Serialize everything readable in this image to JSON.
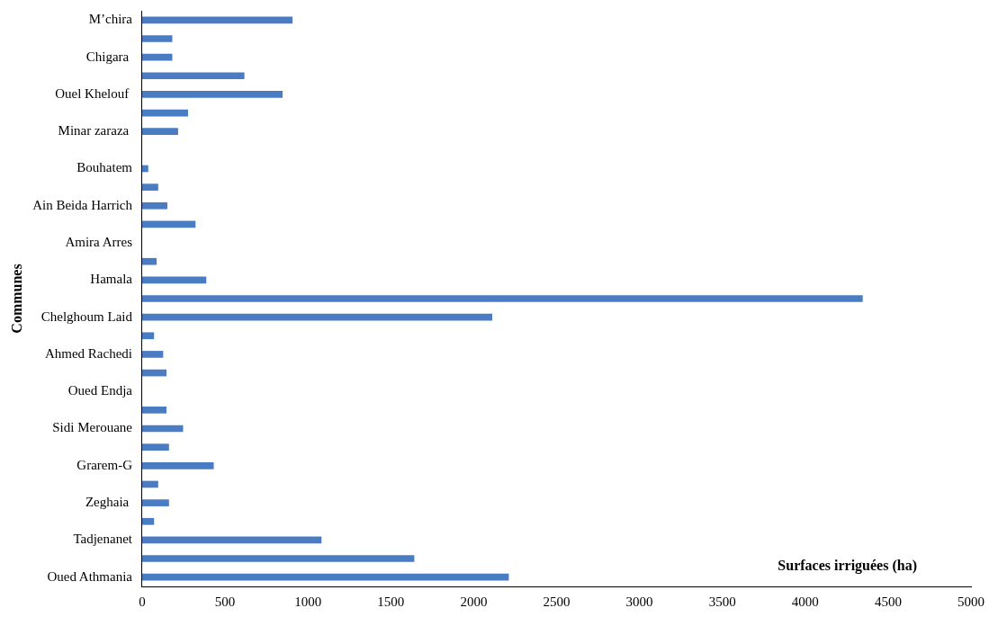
{
  "chart_data": {
    "type": "bar",
    "orientation": "horizontal",
    "xlabel": "Surfaces irriguées (ha)",
    "ylabel": "Communes",
    "categories": [
      "M’chira",
      null,
      "Chigara ",
      null,
      "Ouel Khelouf ",
      null,
      "Minar zaraza ",
      null,
      "Bouhatem",
      null,
      "Ain Beida Harrich",
      null,
      "Amira Arres",
      null,
      "Hamala",
      null,
      "Chelghoum Laid",
      null,
      "Ahmed Rachedi",
      null,
      "Oued Endja",
      null,
      "Sidi Merouane",
      null,
      "Grarem-G",
      null,
      "Zeghaia ",
      null,
      "Tadjenanet",
      null,
      "Oued Athmania"
    ],
    "values": [
      905,
      180,
      180,
      615,
      845,
      275,
      215,
      null,
      35,
      95,
      150,
      320,
      null,
      85,
      385,
      4345,
      2110,
      70,
      125,
      145,
      null,
      145,
      245,
      160,
      430,
      95,
      160,
      70,
      1080,
      1640,
      2210
    ],
    "color": "#4a7cc4",
    "xlim": [
      0,
      5000
    ],
    "xticks": [
      0,
      500,
      1000,
      1500,
      2000,
      2500,
      3000,
      3500,
      4000,
      4500,
      5000
    ],
    "grid": false,
    "legend": false
  }
}
